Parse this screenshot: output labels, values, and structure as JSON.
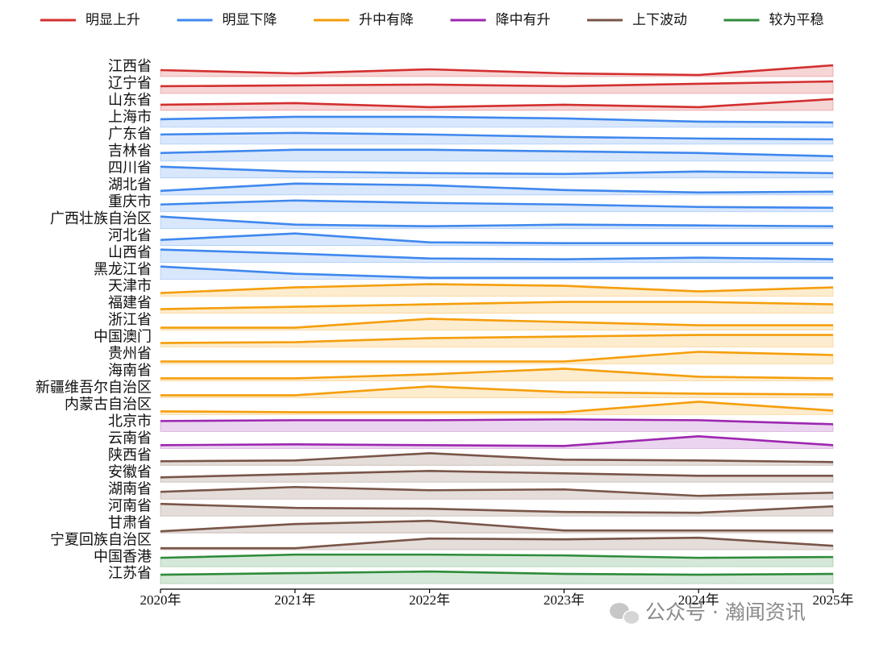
{
  "chart_data": {
    "type": "ridgeline",
    "groups": [
      {
        "name": "明显上升",
        "color": "#d32f2f"
      },
      {
        "name": "明显下降",
        "color": "#3f88ee"
      },
      {
        "name": "升中有降",
        "color": "#f59e0b"
      },
      {
        "name": "降中有升",
        "color": "#9c27b0"
      },
      {
        "name": "上下波动",
        "color": "#795548"
      },
      {
        "name": "较为平稳",
        "color": "#2e8b3a"
      }
    ],
    "x": [
      "2020年",
      "2021年",
      "2022年",
      "2023年",
      "2024年",
      "2025年"
    ],
    "ylim": [
      0,
      20
    ],
    "series": [
      {
        "name": "江西省",
        "group": 0,
        "values": [
          8,
          4,
          9,
          4,
          2,
          14
        ]
      },
      {
        "name": "辽宁省",
        "group": 0,
        "values": [
          9,
          10,
          11,
          9,
          12,
          15
        ]
      },
      {
        "name": "山东省",
        "group": 0,
        "values": [
          7,
          9,
          4,
          7,
          4,
          14
        ]
      },
      {
        "name": "上海市",
        "group": 1,
        "values": [
          10,
          13,
          13,
          11,
          7,
          6
        ]
      },
      {
        "name": "广东省",
        "group": 1,
        "values": [
          12,
          14,
          12,
          9,
          7,
          6
        ]
      },
      {
        "name": "吉林省",
        "group": 1,
        "values": [
          10,
          14,
          14,
          12,
          10,
          6
        ]
      },
      {
        "name": "四川省",
        "group": 1,
        "values": [
          14,
          8,
          6,
          5,
          8,
          6
        ]
      },
      {
        "name": "湖北省",
        "group": 1,
        "values": [
          5,
          14,
          12,
          6,
          3,
          4
        ]
      },
      {
        "name": "重庆市",
        "group": 1,
        "values": [
          9,
          14,
          11,
          9,
          6,
          5
        ]
      },
      {
        "name": "广西壮族自治区",
        "group": 1,
        "values": [
          15,
          5,
          3,
          5,
          4,
          3
        ]
      },
      {
        "name": "河北省",
        "group": 1,
        "values": [
          7,
          15,
          4,
          3,
          3,
          3
        ]
      },
      {
        "name": "山西省",
        "group": 1,
        "values": [
          16,
          11,
          5,
          4,
          6,
          4
        ]
      },
      {
        "name": "黑龙江省",
        "group": 1,
        "values": [
          16,
          7,
          2,
          2,
          2,
          2
        ]
      },
      {
        "name": "天津市",
        "group": 2,
        "values": [
          4,
          11,
          15,
          13,
          6,
          11
        ]
      },
      {
        "name": "福建省",
        "group": 2,
        "values": [
          5,
          8,
          11,
          14,
          14,
          11
        ]
      },
      {
        "name": "浙江省",
        "group": 2,
        "values": [
          3,
          3,
          14,
          10,
          6,
          6
        ]
      },
      {
        "name": "中国澳门",
        "group": 2,
        "values": [
          5,
          6,
          11,
          13,
          15,
          15
        ]
      },
      {
        "name": "贵州省",
        "group": 2,
        "values": [
          3,
          3,
          3,
          3,
          15,
          11
        ]
      },
      {
        "name": "海南省",
        "group": 2,
        "values": [
          3,
          3,
          8,
          15,
          5,
          3
        ]
      },
      {
        "name": "新疆维吾尔自治区",
        "group": 2,
        "values": [
          3,
          3,
          14,
          7,
          5,
          4
        ]
      },
      {
        "name": "内蒙古自治区",
        "group": 2,
        "values": [
          4,
          3,
          3,
          3,
          16,
          5
        ]
      },
      {
        "name": "北京市",
        "group": 3,
        "values": [
          13,
          14,
          14,
          15,
          14,
          9
        ]
      },
      {
        "name": "云南省",
        "group": 3,
        "values": [
          4,
          5,
          4,
          3,
          15,
          4
        ]
      },
      {
        "name": "陕西省",
        "group": 4,
        "values": [
          5,
          6,
          15,
          7,
          6,
          4
        ]
      },
      {
        "name": "安徽省",
        "group": 4,
        "values": [
          6,
          10,
          14,
          11,
          8,
          8
        ]
      },
      {
        "name": "湖南省",
        "group": 4,
        "values": [
          9,
          15,
          11,
          12,
          4,
          8
        ]
      },
      {
        "name": "河南省",
        "group": 4,
        "values": [
          15,
          10,
          9,
          5,
          4,
          12
        ]
      },
      {
        "name": "甘肃省",
        "group": 4,
        "values": [
          2,
          11,
          15,
          3,
          3,
          3
        ]
      },
      {
        "name": "宁夏回族自治区",
        "group": 4,
        "values": [
          2,
          2,
          14,
          13,
          15,
          5
        ]
      },
      {
        "name": "中国香港",
        "group": 5,
        "values": [
          11,
          15,
          15,
          14,
          11,
          12
        ]
      },
      {
        "name": "江苏省",
        "group": 5,
        "values": [
          11,
          13,
          15,
          12,
          11,
          12
        ]
      }
    ],
    "watermark": "公众号 · 瀚闻资讯"
  }
}
